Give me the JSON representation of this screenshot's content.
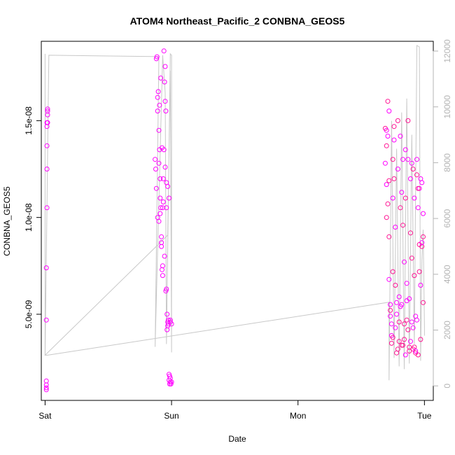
{
  "chart_data": {
    "type": "scatter",
    "title": "ATOM4 Northeast_Pacific_2 CONBNA_GEOS5",
    "xlabel": "Date",
    "ylabel": "CONBNA_GEOS5",
    "x_categories": [
      "Sat",
      "Sun",
      "Mon",
      "Tue"
    ],
    "xlim": [
      -0.03,
      3.07
    ],
    "ylim": [
      5.5e-10,
      1.91e-08
    ],
    "y_ticks": [
      {
        "value": 5e-09,
        "label": "5.0e-09"
      },
      {
        "value": 1e-08,
        "label": "1.0e-08"
      },
      {
        "value": 1.5e-08,
        "label": "1.5e-08"
      }
    ],
    "y2_ticks": [
      {
        "value": 0,
        "label": "0"
      },
      {
        "value": 2000,
        "label": "2000"
      },
      {
        "value": 4000,
        "label": "4000"
      },
      {
        "value": 6000,
        "label": "6000"
      },
      {
        "value": 8000,
        "label": "8000"
      },
      {
        "value": 10000,
        "label": "10000"
      },
      {
        "value": 12000,
        "label": "12000"
      }
    ],
    "y2lim": [
      -520,
      12350
    ],
    "colors": {
      "points": "#ff00ff",
      "points_alt": "#ff1493",
      "altitude_line": "#c8c8c8",
      "right_axis": "#b4b4b4"
    },
    "groups": [
      {
        "x": [
          0.01,
          0.01,
          0.01,
          0.01,
          0.01,
          0.01,
          0.015,
          0.015,
          0.015,
          0.015,
          0.015,
          0.02,
          0.02,
          0.02,
          0.02
        ],
        "y": [
          1.1e-09,
          1.2e-09,
          1.35e-09,
          1.55e-09,
          4.7e-09,
          7.4e-09,
          1.05e-08,
          1.25e-08,
          1.37e-08,
          1.47e-08,
          1.49e-08,
          1.53e-08,
          1.55e-08,
          1.56e-08,
          1.49e-08
        ]
      },
      {
        "x": [
          0.87,
          0.875,
          0.88,
          0.885,
          0.89,
          0.89,
          0.895,
          0.9,
          0.9,
          0.905,
          0.91,
          0.91,
          0.915,
          0.92,
          0.92,
          0.925,
          0.93,
          0.93,
          0.935,
          0.94,
          0.94,
          0.945,
          0.95,
          0.95,
          0.955,
          0.96,
          0.96,
          0.965,
          0.97,
          0.97,
          0.975,
          0.98,
          0.98,
          0.985,
          0.99,
          0.99,
          0.99,
          1.0,
          0.88,
          0.89,
          0.9,
          0.91,
          0.92,
          0.93,
          0.95,
          0.96,
          0.97,
          0.98,
          0.99,
          1.0,
          0.905,
          0.915,
          0.925,
          0.935,
          0.945,
          0.955,
          0.965,
          0.975,
          0.985,
          0.995
        ],
        "y": [
          1.3e-08,
          1.25e-08,
          1.82e-08,
          1.83e-08,
          1.55e-08,
          1.62e-08,
          1.65e-08,
          1.45e-08,
          1.28e-08,
          1.35e-08,
          1.2e-08,
          1.1e-08,
          1.05e-08,
          8.7e-09,
          9e-09,
          7.3e-09,
          7e-09,
          1.05e-08,
          1.2e-08,
          1.35e-08,
          1.86e-08,
          1.7e-08,
          1.78e-08,
          1.6e-08,
          1.55e-08,
          1.05e-08,
          6.3e-09,
          5e-09,
          4.6e-09,
          4.4e-09,
          4.5e-09,
          1.9e-09,
          1.6e-09,
          1.4e-09,
          1.5e-09,
          1.7e-09,
          4.6e-09,
          1.5e-09,
          1.15e-08,
          1e-08,
          9.8e-09,
          1.02e-08,
          8.5e-09,
          7.5e-09,
          1.26e-08,
          1.18e-08,
          1.16e-08,
          1.1e-08,
          4.7e-09,
          4.5e-09,
          1.58e-08,
          1.72e-08,
          1.36e-08,
          1.08e-08,
          8e-09,
          6.2e-09,
          4.2e-09,
          4.7e-09,
          1.8e-09,
          1.4e-09
        ]
      },
      {
        "x": [
          2.69,
          2.69,
          2.7,
          2.7,
          2.7,
          2.71,
          2.71,
          2.72,
          2.72,
          2.72,
          2.73,
          2.73,
          2.74,
          2.74,
          2.75,
          2.75,
          2.75,
          2.76,
          2.76,
          2.77,
          2.77,
          2.78,
          2.78,
          2.79,
          2.79,
          2.8,
          2.8,
          2.81,
          2.81,
          2.82,
          2.82,
          2.83,
          2.83,
          2.84,
          2.84,
          2.85,
          2.85,
          2.86,
          2.86,
          2.87,
          2.87,
          2.88,
          2.88,
          2.89,
          2.89,
          2.9,
          2.9,
          2.91,
          2.91,
          2.92,
          2.92,
          2.93,
          2.93,
          2.94,
          2.94,
          2.95,
          2.95,
          2.96,
          2.96,
          2.97,
          2.97,
          2.98,
          2.98,
          2.99,
          2.99,
          2.7,
          2.72,
          2.74,
          2.76,
          2.78,
          2.8,
          2.82,
          2.84,
          2.86,
          2.88,
          2.9,
          2.92,
          2.94,
          2.96,
          2.98,
          2.71,
          2.73,
          2.75,
          2.77,
          2.79,
          2.81,
          2.83,
          2.85,
          2.87,
          2.89,
          2.91,
          2.93,
          2.95,
          2.97,
          2.99
        ],
        "y": [
          1.46e-08,
          1.28e-08,
          1.37e-08,
          1.17e-08,
          1e-08,
          1.42e-08,
          1.6e-08,
          1.55e-08,
          9e-09,
          6.8e-09,
          5.2e-09,
          5.5e-09,
          3.5e-09,
          4.5e-09,
          1.3e-08,
          1.1e-08,
          7.2e-09,
          1.4e-08,
          1.2e-08,
          9.5e-09,
          6.5e-09,
          5e-09,
          3e-09,
          1.25e-08,
          1.5e-08,
          5.9e-09,
          4.6e-09,
          1.42e-08,
          1.05e-08,
          5.5e-09,
          3.4e-09,
          1.3e-08,
          9.6e-09,
          7.7e-09,
          4.5e-09,
          1.35e-08,
          1.1e-08,
          6.6e-09,
          4.7e-09,
          1.3e-08,
          1.5e-08,
          5.8e-09,
          3.1e-09,
          1.2e-08,
          9.2e-09,
          1.28e-08,
          7.9e-09,
          4.3e-09,
          3.2e-09,
          1.1e-08,
          7e-09,
          4.9e-09,
          3e-09,
          1.3e-08,
          1.22e-08,
          1.05e-08,
          2.9e-09,
          1.15e-08,
          8.6e-09,
          6.5e-09,
          3.7e-09,
          1.18e-08,
          8.5e-09,
          1.02e-08,
          5.6e-09,
          1.45e-08,
          1.19e-08,
          3.9e-09,
          1.47e-08,
          5.6e-09,
          3.6e-09,
          1.13e-08,
          3.7e-09,
          5.7e-09,
          3.3e-09,
          4.6e-09,
          3.3e-09,
          4.7e-09,
          7.2e-09,
          8.7e-09,
          1.07e-08,
          4.9e-09,
          3.8e-09,
          4.3e-09,
          3.2e-09,
          5.4e-09,
          3.4e-09,
          2.9e-09,
          4.2e-09,
          3.6e-09,
          1.25e-08,
          3.1e-09,
          1.15e-08,
          1.2e-08,
          9e-09
        ]
      }
    ],
    "altitude_series": {
      "x": [
        0.0,
        0.0,
        0.03,
        0.9,
        0.87,
        0.93,
        0.95,
        0.96,
        0.99,
        1.0,
        1.0,
        0.99,
        0.97,
        0.0,
        0.02,
        2.72,
        2.72,
        2.74,
        2.76,
        2.78,
        2.8,
        2.82,
        2.84,
        2.86,
        2.88,
        2.9,
        2.92,
        2.94,
        2.96,
        2.97,
        2.98,
        2.99,
        3.0,
        3.0
      ],
      "y": [
        11900,
        1100,
        11850,
        11800,
        1400,
        11850,
        10500,
        1500,
        11900,
        11850,
        1200,
        11300,
        5400,
        1100,
        1100,
        3000,
        200,
        9500,
        1000,
        8500,
        700,
        9800,
        600,
        10300,
        800,
        9000,
        1500,
        12200,
        12150,
        900,
        4500,
        5600,
        2100,
        1800
      ]
    }
  }
}
